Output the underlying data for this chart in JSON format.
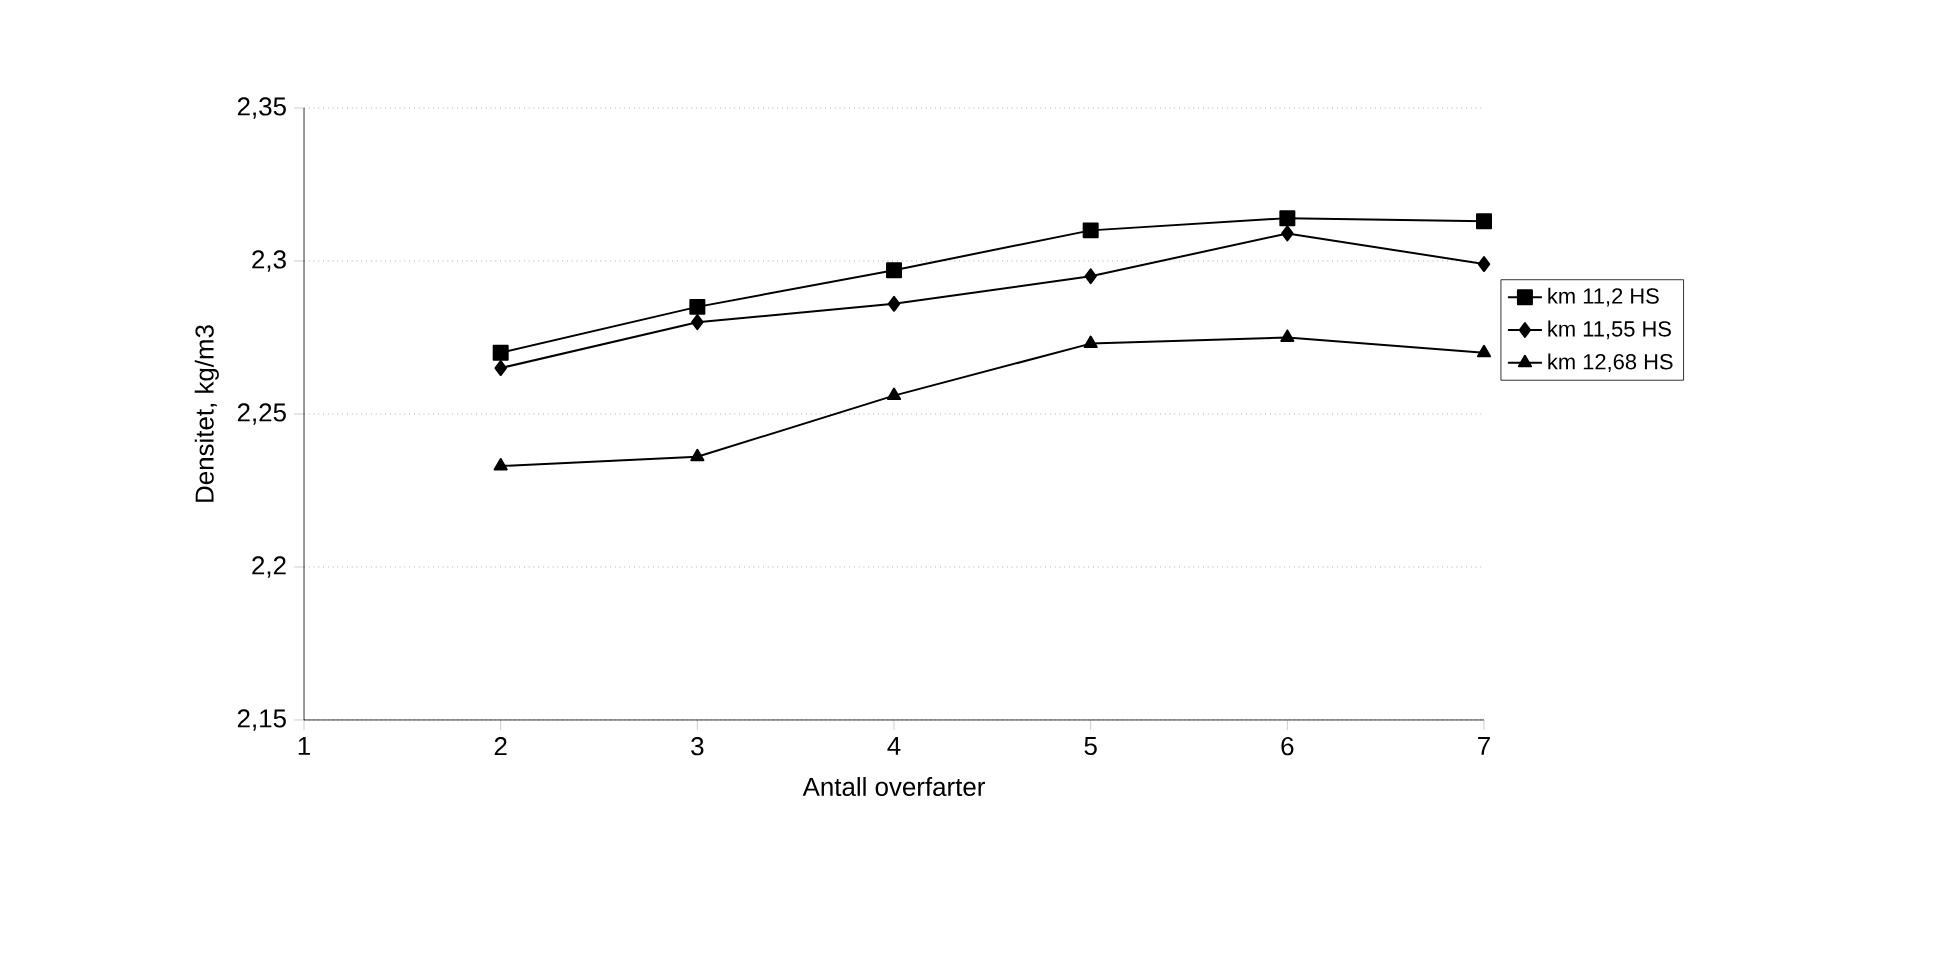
{
  "chart_data": {
    "type": "line",
    "xlabel": "Antall overfarter",
    "ylabel": "Densitet, kg/m3",
    "x": [
      2,
      3,
      4,
      5,
      6,
      7
    ],
    "series": [
      {
        "name": "km 11,2 HS",
        "color": "#000000",
        "marker": "square",
        "values": [
          2.27,
          2.285,
          2.297,
          2.31,
          2.314,
          2.313
        ]
      },
      {
        "name": "km 11,55 HS",
        "color": "#000000",
        "marker": "diamond",
        "values": [
          2.265,
          2.28,
          2.286,
          2.295,
          2.309,
          2.299
        ]
      },
      {
        "name": "km 12,68 HS",
        "color": "#000000",
        "marker": "triangle",
        "values": [
          2.233,
          2.236,
          2.256,
          2.273,
          2.275,
          2.27
        ]
      }
    ],
    "xlim": [
      1,
      7
    ],
    "xticks": [
      1,
      2,
      3,
      4,
      5,
      6,
      7
    ],
    "ylim": [
      2.15,
      2.35
    ],
    "yticks": [
      {
        "value": 2.15,
        "label": "2,15"
      },
      {
        "value": 2.2,
        "label": "2,2"
      },
      {
        "value": 2.25,
        "label": "2,25"
      },
      {
        "value": 2.3,
        "label": "2,3"
      },
      {
        "value": 2.35,
        "label": "2,35"
      }
    ],
    "grid": "y",
    "legend": "right",
    "line_style": "solid"
  }
}
